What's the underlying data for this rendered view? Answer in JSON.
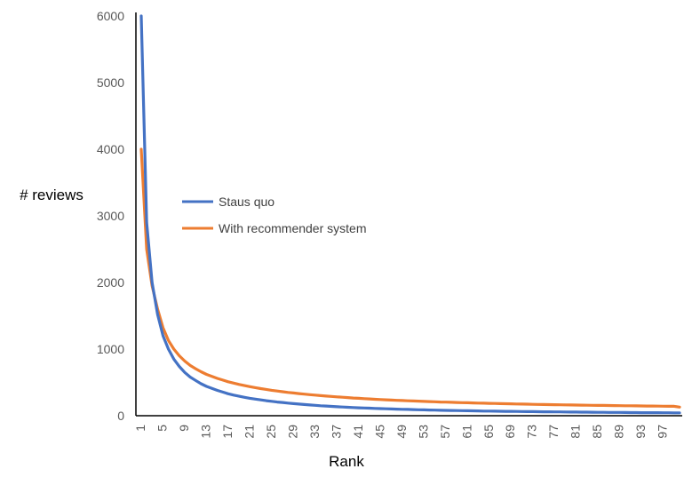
{
  "chart_data": {
    "type": "line",
    "xlabel": "Rank",
    "ylabel": "# reviews",
    "xlim": [
      1,
      100
    ],
    "ylim": [
      0,
      6000
    ],
    "yticks": [
      0,
      1000,
      2000,
      3000,
      4000,
      5000,
      6000
    ],
    "xticks": [
      1,
      5,
      9,
      13,
      17,
      21,
      25,
      29,
      33,
      37,
      41,
      45,
      49,
      53,
      57,
      61,
      65,
      69,
      73,
      77,
      81,
      85,
      89,
      93,
      97
    ],
    "grid": false,
    "legend_position": "center-left",
    "x": [
      1,
      2,
      3,
      4,
      5,
      6,
      7,
      8,
      9,
      10,
      11,
      12,
      13,
      14,
      15,
      16,
      17,
      18,
      19,
      20,
      21,
      22,
      23,
      24,
      25,
      26,
      27,
      28,
      29,
      30,
      31,
      32,
      33,
      34,
      35,
      36,
      37,
      38,
      39,
      40,
      41,
      42,
      43,
      44,
      45,
      46,
      47,
      48,
      49,
      50,
      51,
      52,
      53,
      54,
      55,
      56,
      57,
      58,
      59,
      60,
      61,
      62,
      63,
      64,
      65,
      66,
      67,
      68,
      69,
      70,
      71,
      72,
      73,
      74,
      75,
      76,
      77,
      78,
      79,
      80,
      81,
      82,
      83,
      84,
      85,
      86,
      87,
      88,
      89,
      90,
      91,
      92,
      93,
      94,
      95,
      96,
      97,
      98,
      99,
      100
    ],
    "series": [
      {
        "name": "Staus quo",
        "color": "#4472c4",
        "values": [
          6000,
          2900,
          2000,
          1520,
          1200,
          1000,
          850,
          740,
          650,
          580,
          530,
          480,
          440,
          410,
          380,
          355,
          330,
          310,
          292,
          276,
          262,
          249,
          237,
          226,
          216,
          206,
          198,
          190,
          182,
          175,
          168,
          162,
          156,
          150,
          145,
          140,
          135,
          131,
          127,
          123,
          119,
          116,
          113,
          110,
          107,
          104,
          101,
          99,
          96,
          94,
          92,
          90,
          88,
          86,
          84,
          82,
          80,
          79,
          77,
          76,
          74,
          73,
          72,
          70,
          69,
          68,
          67,
          66,
          65,
          64,
          63,
          62,
          61,
          60,
          59,
          58,
          57,
          57,
          56,
          55,
          54,
          53,
          53,
          52,
          51,
          51,
          50,
          49,
          49,
          48,
          47,
          47,
          46,
          46,
          45,
          45,
          44,
          44,
          43,
          43
        ]
      },
      {
        "name": "With recommender system",
        "color": "#ed7d31",
        "values": [
          4000,
          2500,
          1950,
          1600,
          1320,
          1130,
          1000,
          900,
          820,
          755,
          705,
          660,
          620,
          590,
          560,
          535,
          510,
          490,
          470,
          452,
          436,
          421,
          407,
          394,
          382,
          371,
          360,
          350,
          341,
          332,
          324,
          316,
          309,
          302,
          295,
          289,
          283,
          277,
          272,
          266,
          261,
          256,
          252,
          247,
          243,
          239,
          235,
          231,
          228,
          224,
          221,
          218,
          215,
          212,
          209,
          206,
          204,
          201,
          199,
          196,
          194,
          192,
          190,
          188,
          186,
          184,
          182,
          180,
          178,
          176,
          175,
          173,
          171,
          170,
          168,
          167,
          165,
          164,
          163,
          161,
          160,
          159,
          157,
          156,
          155,
          154,
          153,
          152,
          151,
          150,
          149,
          148,
          147,
          146,
          145,
          144,
          143,
          142,
          141,
          130
        ]
      }
    ]
  }
}
